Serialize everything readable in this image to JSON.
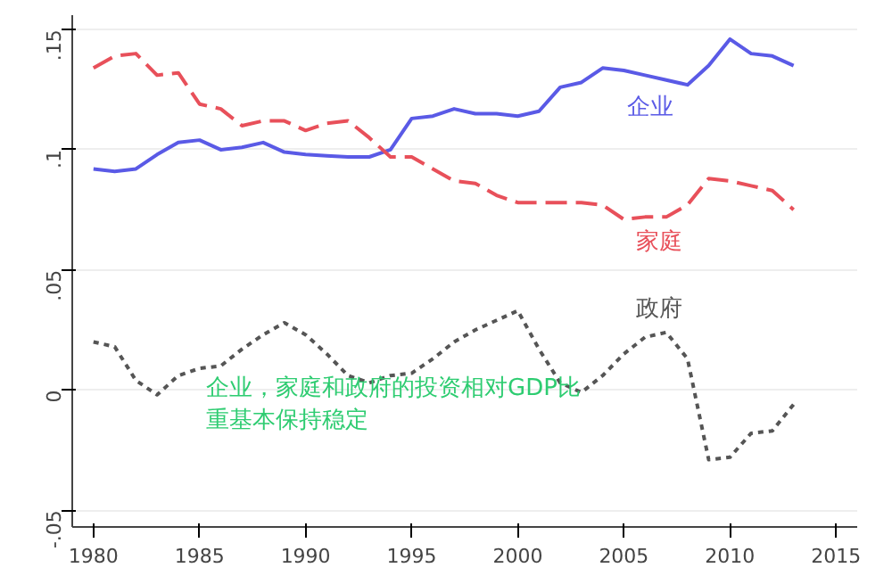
{
  "chart_data": {
    "type": "line",
    "x": [
      1980,
      1981,
      1982,
      1983,
      1984,
      1985,
      1986,
      1987,
      1988,
      1989,
      1990,
      1991,
      1992,
      1993,
      1994,
      1995,
      1996,
      1997,
      1998,
      1999,
      2000,
      2001,
      2002,
      2003,
      2004,
      2005,
      2006,
      2007,
      2008,
      2009,
      2010,
      2011,
      2012,
      2013
    ],
    "series": [
      {
        "name": "企业",
        "color": "#5a5ae6",
        "line_style": "solid",
        "values": [
          0.092,
          0.091,
          0.092,
          0.098,
          0.103,
          0.104,
          0.1,
          0.101,
          0.103,
          0.099,
          0.098,
          0.0975,
          0.097,
          0.097,
          0.1,
          0.113,
          0.114,
          0.117,
          0.115,
          0.115,
          0.114,
          0.116,
          0.126,
          0.128,
          0.134,
          0.133,
          0.131,
          0.129,
          0.127,
          0.135,
          0.146,
          0.14,
          0.139,
          0.135
        ]
      },
      {
        "name": "家庭",
        "color": "#e8505a",
        "line_style": "dashed",
        "values": [
          0.134,
          0.139,
          0.14,
          0.131,
          0.132,
          0.119,
          0.117,
          0.11,
          0.112,
          0.112,
          0.108,
          0.111,
          0.112,
          0.105,
          0.097,
          0.097,
          0.092,
          0.087,
          0.086,
          0.081,
          0.078,
          0.078,
          0.078,
          0.078,
          0.077,
          0.071,
          0.072,
          0.072,
          0.077,
          0.088,
          0.087,
          0.085,
          0.083,
          0.075
        ]
      },
      {
        "name": "政府",
        "color": "#555555",
        "line_style": "dotted",
        "values": [
          0.02,
          0.018,
          0.004,
          -0.002,
          0.006,
          0.009,
          0.01,
          0.017,
          0.023,
          0.028,
          0.023,
          0.015,
          0.006,
          0.003,
          0.006,
          0.007,
          0.013,
          0.02,
          0.025,
          0.029,
          0.033,
          0.017,
          0.003,
          -0.001,
          0.006,
          0.015,
          0.022,
          0.024,
          0.013,
          -0.029,
          -0.028,
          -0.018,
          -0.017,
          -0.006
        ]
      }
    ],
    "xlim": [
      1979,
      2016
    ],
    "xticks": [
      1980,
      1985,
      1990,
      1995,
      2000,
      2005,
      2010,
      2015
    ],
    "ylim": [
      -0.057,
      0.156
    ],
    "yticks": [
      {
        "value": -0.05,
        "label": "-.05"
      },
      {
        "value": 0,
        "label": "0"
      },
      {
        "value": 0.05,
        "label": ".05"
      },
      {
        "value": 0.1,
        "label": ".1"
      },
      {
        "value": 0.15,
        "label": ".15"
      }
    ],
    "grid": "y",
    "annotations": [
      "企业，家庭和政府的投资相对GDP比",
      "重基本保持稳定"
    ]
  }
}
